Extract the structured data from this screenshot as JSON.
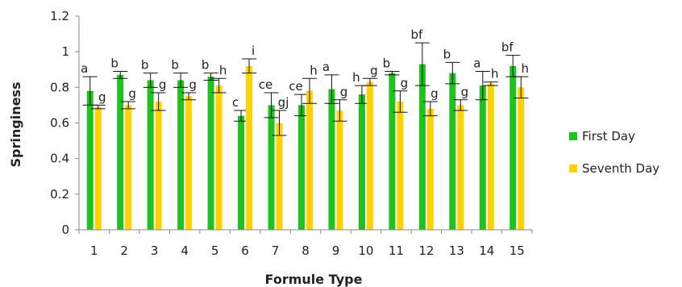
{
  "chart_data": {
    "type": "bar",
    "xlabel": "Formule Type",
    "ylabel": "Springiness",
    "ylim": [
      0,
      1.2
    ],
    "yticks": [
      "0",
      "0.2",
      "0.4",
      "0.6",
      "0.8",
      "1",
      "1.2"
    ],
    "grid": false,
    "legend_position": "right",
    "categories": [
      "1",
      "2",
      "3",
      "4",
      "5",
      "6",
      "7",
      "8",
      "9",
      "10",
      "11",
      "12",
      "13",
      "14",
      "15"
    ],
    "series": [
      {
        "name": "First Day",
        "color": "#1ec31e",
        "values": [
          0.78,
          0.87,
          0.84,
          0.84,
          0.86,
          0.64,
          0.7,
          0.7,
          0.79,
          0.76,
          0.88,
          0.93,
          0.88,
          0.81,
          0.92
        ],
        "errors": [
          0.08,
          0.02,
          0.04,
          0.04,
          0.02,
          0.03,
          0.07,
          0.06,
          0.08,
          0.05,
          0.01,
          0.12,
          0.06,
          0.08,
          0.06
        ],
        "labels": [
          "a",
          "b",
          "b",
          "b",
          "b",
          "c",
          "ce",
          "ce",
          "a",
          "h",
          "b",
          "bf",
          "b",
          "a",
          "bf"
        ]
      },
      {
        "name": "Seventh Day",
        "color": "#ffd200",
        "values": [
          0.69,
          0.7,
          0.72,
          0.75,
          0.81,
          0.92,
          0.6,
          0.78,
          0.67,
          0.83,
          0.72,
          0.68,
          0.7,
          0.82,
          0.8
        ],
        "errors": [
          0.01,
          0.02,
          0.05,
          0.02,
          0.04,
          0.04,
          0.07,
          0.07,
          0.06,
          0.02,
          0.06,
          0.04,
          0.03,
          0.01,
          0.06
        ],
        "labels": [
          "g",
          "g",
          "g",
          "g",
          "h",
          "i",
          "gj",
          "h",
          "g",
          "g",
          "g",
          "g",
          "g",
          "h",
          "h"
        ]
      }
    ]
  }
}
